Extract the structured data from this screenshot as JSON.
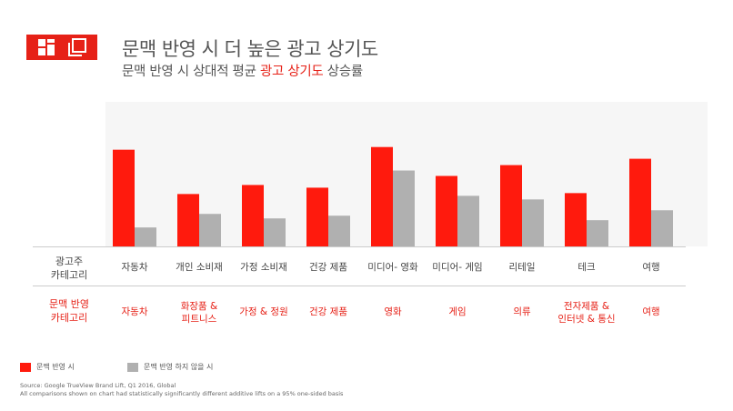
{
  "header": {
    "title": "문맥 반영 시 더 높은 광고 상기도",
    "subtitle_prefix": "문맥 반영 시 상대적 평균 ",
    "subtitle_highlight": "광고 상기도",
    "subtitle_suffix": " 상승률"
  },
  "icons": {
    "logo": [
      "grid-icon",
      "copy-icon"
    ]
  },
  "colors": {
    "context": "#ff1a0d",
    "no_context": "#b0b0b0",
    "accent": "#e62117",
    "plot_bg": "#f6f6f6"
  },
  "row_labels": {
    "ad_category": [
      "광고주",
      "카테고리"
    ],
    "context_category": [
      "문맥 반영",
      "카테고리"
    ]
  },
  "legend": {
    "context": "문맥 반영 시",
    "no_context": "문맥 반영 하지 않을 시"
  },
  "source": {
    "line1": "Source: Google TrueView Brand Lift, Q1 2016, Global",
    "line2": "All comparisons shown on chart had statistically significantly different additive lifts on a 95% one-sided basis"
  },
  "chart_data": {
    "type": "bar",
    "categories": [
      "자동차",
      "개인 소비재",
      "가정 소비재",
      "건강 제품",
      "미디어- 영화",
      "미디어- 게임",
      "리테일",
      "테크",
      "여행"
    ],
    "context_categories": [
      [
        "자동차"
      ],
      [
        "화장품 &",
        "피트니스"
      ],
      [
        "가정 & 정원"
      ],
      [
        "건강 제품"
      ],
      [
        "영화"
      ],
      [
        "게임"
      ],
      [
        "의류"
      ],
      [
        "전자제품 &",
        "인터넷 & 통신"
      ],
      [
        "여행"
      ]
    ],
    "series": [
      {
        "values": [
          107,
          58,
          68,
          65,
          110,
          78,
          90,
          59,
          97
        ]
      },
      {
        "values": [
          21,
          36,
          31,
          34,
          84,
          56,
          52,
          29,
          40
        ]
      }
    ],
    "ylim": [
      0,
      160
    ],
    "grid": false,
    "legend_position": "bottom-left",
    "xlabel": "",
    "ylabel": ""
  }
}
